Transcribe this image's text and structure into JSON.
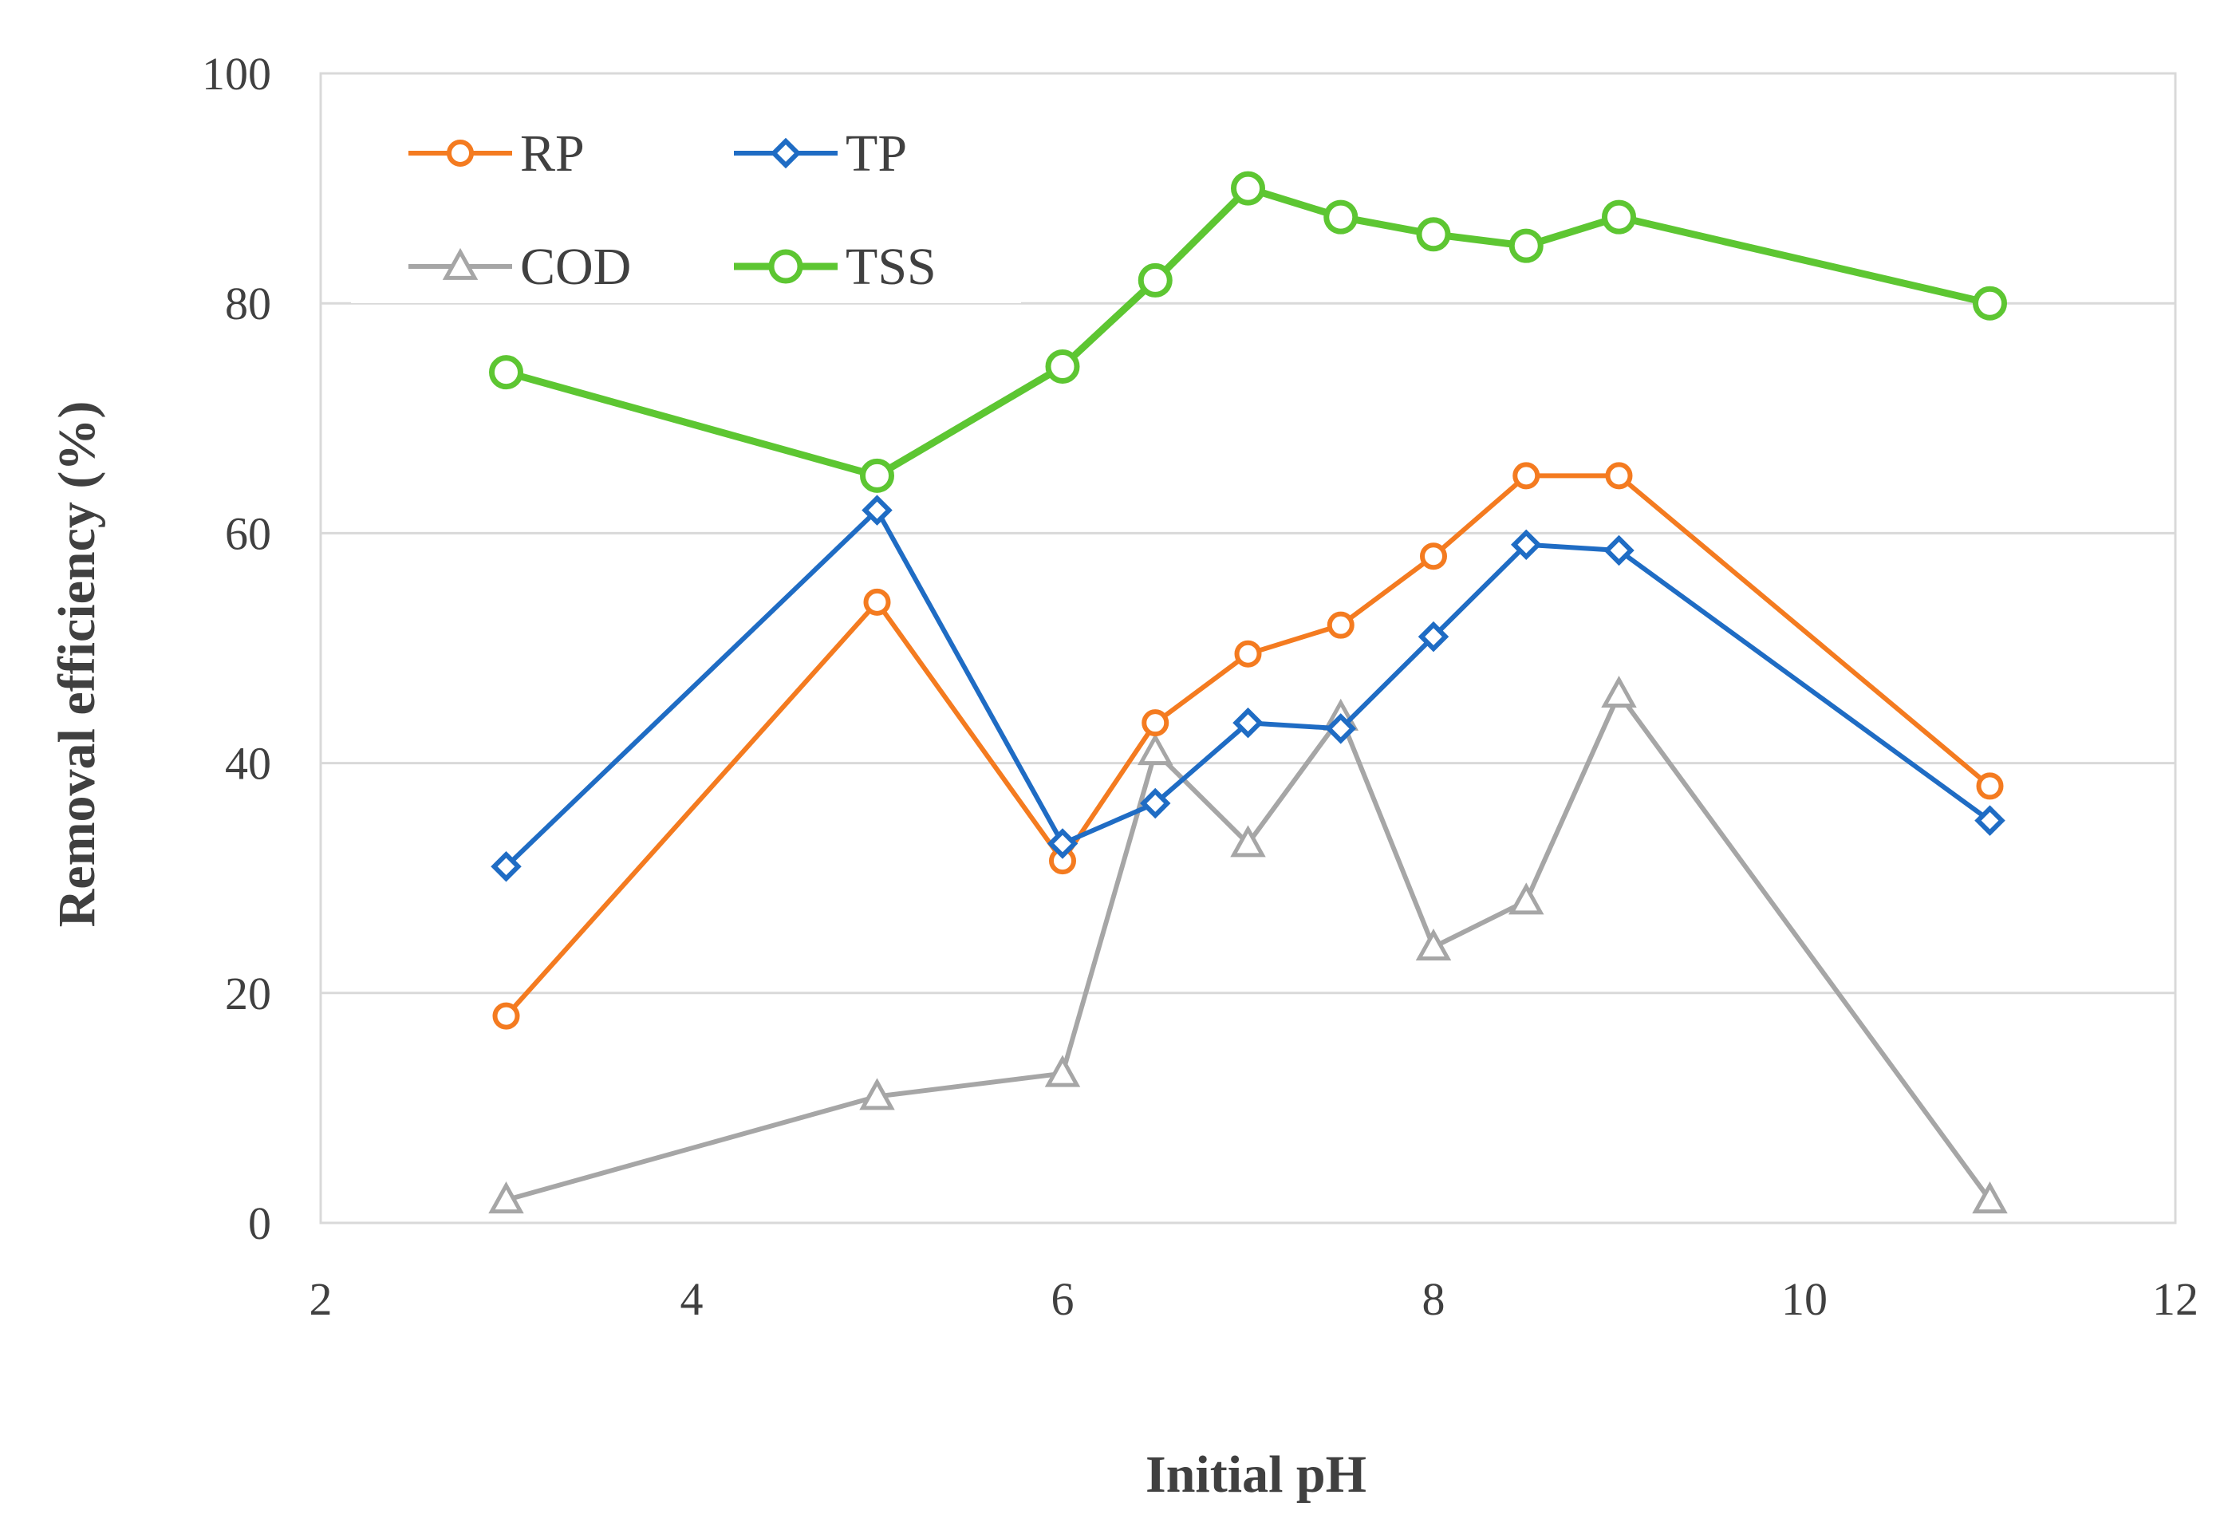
{
  "chart_data": {
    "type": "line",
    "title": "",
    "xlabel": "Initial pH",
    "ylabel": "Removal efficiency (%)",
    "xlim": [
      2,
      12
    ],
    "ylim": [
      0,
      100
    ],
    "xticks": [
      2,
      4,
      6,
      8,
      10,
      12
    ],
    "yticks": [
      0,
      20,
      40,
      60,
      80,
      100
    ],
    "grid": "horizontal",
    "legend_position": "top-left",
    "series": [
      {
        "name": "RP",
        "color": "#F47B20",
        "marker": "circle",
        "x": [
          3,
          5,
          6,
          6.5,
          7,
          7.5,
          8,
          8.5,
          9,
          11
        ],
        "values": [
          18,
          54,
          31.5,
          43.5,
          49.5,
          52,
          58,
          65,
          65,
          38
        ]
      },
      {
        "name": "TP",
        "color": "#1F6CC4",
        "marker": "diamond",
        "x": [
          3,
          5,
          6,
          6.5,
          7,
          7.5,
          8,
          8.5,
          9,
          11
        ],
        "values": [
          31,
          62,
          33,
          36.5,
          43.5,
          43,
          51,
          59,
          58.5,
          35
        ]
      },
      {
        "name": "COD",
        "color": "#A6A6A6",
        "marker": "triangle",
        "x": [
          3,
          5,
          6,
          6.5,
          7,
          7.5,
          8,
          8.5,
          9,
          11
        ],
        "values": [
          2,
          11,
          13,
          41,
          33,
          44,
          24,
          28,
          46,
          2
        ]
      },
      {
        "name": "TSS",
        "color": "#5DC632",
        "marker": "circle-large",
        "x": [
          3,
          5,
          6,
          6.5,
          7,
          7.5,
          8,
          8.5,
          9,
          11
        ],
        "values": [
          74,
          65,
          74.5,
          82,
          90,
          87.5,
          86,
          85,
          87.5,
          80
        ]
      }
    ]
  }
}
